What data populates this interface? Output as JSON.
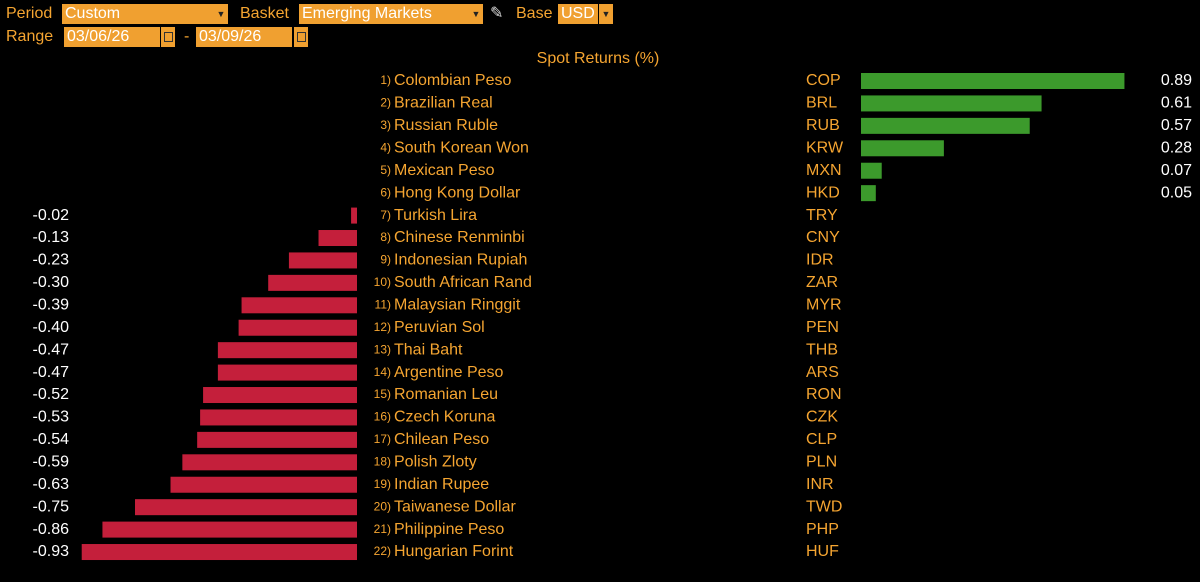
{
  "controls": {
    "period_label": "Period",
    "period_value": "Custom",
    "basket_label": "Basket",
    "basket_value": "Emerging Markets",
    "base_label": "Base",
    "base_value": "USD",
    "range_label": "Range",
    "range_start": "03/06/26",
    "range_separator": "-",
    "range_end": "03/09/26"
  },
  "chart_data": {
    "type": "bar",
    "orientation": "horizontal",
    "title": "Spot Returns (%)",
    "ranks": [
      "1)",
      "2)",
      "3)",
      "4)",
      "5)",
      "6)",
      "7)",
      "8)",
      "9)",
      "10)",
      "11)",
      "12)",
      "13)",
      "14)",
      "15)",
      "16)",
      "17)",
      "18)",
      "19)",
      "20)",
      "21)",
      "22)"
    ],
    "categories": [
      "Colombian Peso",
      "Brazilian Real",
      "Russian Ruble",
      "South Korean Won",
      "Mexican Peso",
      "Hong Kong Dollar",
      "Turkish Lira",
      "Chinese Renminbi",
      "Indonesian Rupiah",
      "South African Rand",
      "Malaysian Ringgit",
      "Peruvian Sol",
      "Thai Baht",
      "Argentine Peso",
      "Romanian Leu",
      "Czech Koruna",
      "Chilean Peso",
      "Polish Zloty",
      "Indian Rupee",
      "Taiwanese Dollar",
      "Philippine Peso",
      "Hungarian Forint"
    ],
    "codes": [
      "COP",
      "BRL",
      "RUB",
      "KRW",
      "MXN",
      "HKD",
      "TRY",
      "CNY",
      "IDR",
      "ZAR",
      "MYR",
      "PEN",
      "THB",
      "ARS",
      "RON",
      "CZK",
      "CLP",
      "PLN",
      "INR",
      "TWD",
      "PHP",
      "HUF"
    ],
    "values": [
      0.89,
      0.61,
      0.57,
      0.28,
      0.07,
      0.05,
      -0.02,
      -0.13,
      -0.23,
      -0.3,
      -0.39,
      -0.4,
      -0.47,
      -0.47,
      -0.52,
      -0.53,
      -0.54,
      -0.59,
      -0.63,
      -0.75,
      -0.86,
      -0.93
    ],
    "value_labels": [
      "0.89",
      "0.61",
      "0.57",
      "0.28",
      "0.07",
      "0.05",
      "-0.02",
      "-0.13",
      "-0.23",
      "-0.30",
      "-0.39",
      "-0.40",
      "-0.47",
      "-0.47",
      "-0.52",
      "-0.53",
      "-0.54",
      "-0.59",
      "-0.63",
      "-0.75",
      "-0.86",
      "-0.93"
    ],
    "positive_color": "#3c9a2c",
    "negative_color": "#c41f3b"
  }
}
